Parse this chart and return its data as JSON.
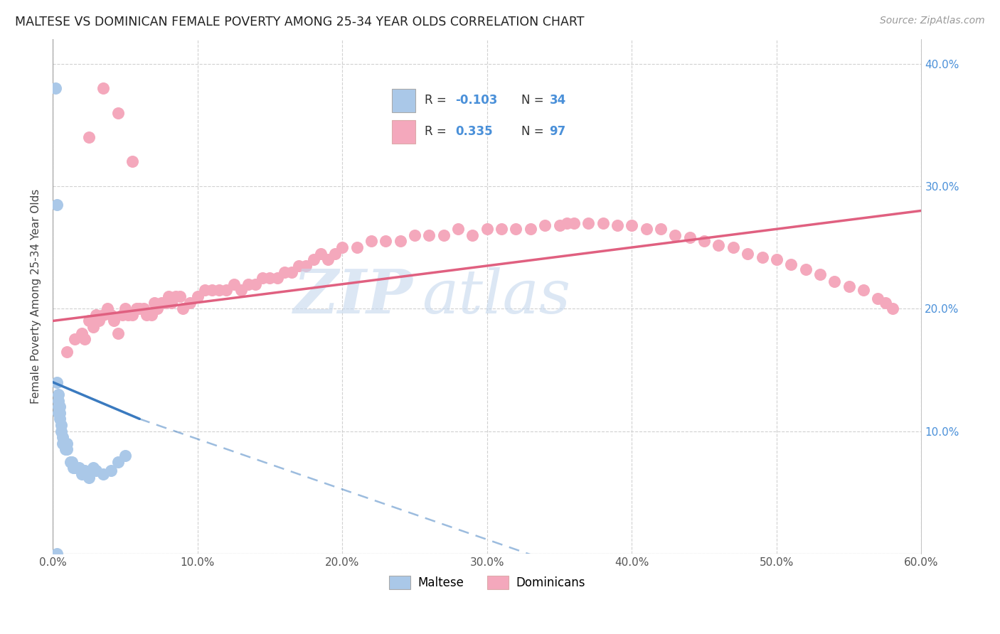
{
  "title": "MALTESE VS DOMINICAN FEMALE POVERTY AMONG 25-34 YEAR OLDS CORRELATION CHART",
  "source": "Source: ZipAtlas.com",
  "ylabel": "Female Poverty Among 25-34 Year Olds",
  "xlim": [
    0.0,
    0.6
  ],
  "ylim": [
    0.0,
    0.42
  ],
  "xticks": [
    0.0,
    0.1,
    0.2,
    0.3,
    0.4,
    0.5,
    0.6
  ],
  "xticklabels": [
    "0.0%",
    "10.0%",
    "20.0%",
    "30.0%",
    "40.0%",
    "50.0%",
    "60.0%"
  ],
  "yticks_right": [
    0.1,
    0.2,
    0.3,
    0.4
  ],
  "yticklabels_right": [
    "10.0%",
    "20.0%",
    "30.0%",
    "40.0%"
  ],
  "maltese_color": "#aac8e8",
  "dominican_color": "#f4a8bc",
  "maltese_line_color": "#3a7abf",
  "dominican_line_color": "#e06080",
  "maltese_R": -0.103,
  "maltese_N": 34,
  "dominican_R": 0.335,
  "dominican_N": 97,
  "legend_labels": [
    "Maltese",
    "Dominicans"
  ],
  "watermark_zip": "ZIP",
  "watermark_atlas": "atlas",
  "maltese_x": [
    0.002,
    0.003,
    0.003,
    0.004,
    0.004,
    0.004,
    0.004,
    0.005,
    0.005,
    0.005,
    0.006,
    0.006,
    0.007,
    0.007,
    0.008,
    0.009,
    0.009,
    0.01,
    0.01,
    0.012,
    0.013,
    0.014,
    0.015,
    0.018,
    0.02,
    0.022,
    0.025,
    0.028,
    0.03,
    0.035,
    0.04,
    0.045,
    0.05,
    0.003
  ],
  "maltese_y": [
    0.38,
    0.285,
    0.14,
    0.13,
    0.125,
    0.12,
    0.115,
    0.12,
    0.115,
    0.11,
    0.105,
    0.1,
    0.095,
    0.09,
    0.09,
    0.09,
    0.085,
    0.09,
    0.085,
    0.075,
    0.075,
    0.07,
    0.07,
    0.07,
    0.065,
    0.068,
    0.062,
    0.07,
    0.068,
    0.065,
    0.068,
    0.075,
    0.08,
    0.0
  ],
  "dominican_x": [
    0.01,
    0.015,
    0.02,
    0.022,
    0.025,
    0.028,
    0.03,
    0.032,
    0.035,
    0.038,
    0.04,
    0.042,
    0.045,
    0.048,
    0.05,
    0.052,
    0.055,
    0.058,
    0.06,
    0.063,
    0.065,
    0.068,
    0.07,
    0.072,
    0.075,
    0.078,
    0.08,
    0.082,
    0.085,
    0.088,
    0.09,
    0.095,
    0.1,
    0.105,
    0.11,
    0.115,
    0.12,
    0.125,
    0.13,
    0.135,
    0.14,
    0.145,
    0.15,
    0.155,
    0.16,
    0.165,
    0.17,
    0.175,
    0.18,
    0.185,
    0.19,
    0.195,
    0.2,
    0.21,
    0.22,
    0.23,
    0.24,
    0.25,
    0.26,
    0.27,
    0.28,
    0.29,
    0.3,
    0.31,
    0.32,
    0.33,
    0.34,
    0.35,
    0.355,
    0.36,
    0.37,
    0.38,
    0.39,
    0.4,
    0.41,
    0.42,
    0.43,
    0.44,
    0.45,
    0.46,
    0.47,
    0.48,
    0.49,
    0.5,
    0.51,
    0.52,
    0.53,
    0.54,
    0.55,
    0.56,
    0.57,
    0.575,
    0.58,
    0.025,
    0.035,
    0.045,
    0.055
  ],
  "dominican_y": [
    0.165,
    0.175,
    0.18,
    0.175,
    0.19,
    0.185,
    0.195,
    0.19,
    0.195,
    0.2,
    0.195,
    0.19,
    0.18,
    0.195,
    0.2,
    0.195,
    0.195,
    0.2,
    0.2,
    0.2,
    0.195,
    0.195,
    0.205,
    0.2,
    0.205,
    0.205,
    0.21,
    0.205,
    0.21,
    0.21,
    0.2,
    0.205,
    0.21,
    0.215,
    0.215,
    0.215,
    0.215,
    0.22,
    0.215,
    0.22,
    0.22,
    0.225,
    0.225,
    0.225,
    0.23,
    0.23,
    0.235,
    0.235,
    0.24,
    0.245,
    0.24,
    0.245,
    0.25,
    0.25,
    0.255,
    0.255,
    0.255,
    0.26,
    0.26,
    0.26,
    0.265,
    0.26,
    0.265,
    0.265,
    0.265,
    0.265,
    0.268,
    0.268,
    0.27,
    0.27,
    0.27,
    0.27,
    0.268,
    0.268,
    0.265,
    0.265,
    0.26,
    0.258,
    0.255,
    0.252,
    0.25,
    0.245,
    0.242,
    0.24,
    0.236,
    0.232,
    0.228,
    0.222,
    0.218,
    0.215,
    0.208,
    0.205,
    0.2,
    0.34,
    0.38,
    0.36,
    0.32
  ],
  "maltese_trend_x0": 0.0,
  "maltese_trend_x1": 0.06,
  "maltese_trend_xdash1": 0.06,
  "maltese_trend_xdash2": 0.45,
  "maltese_trend_y0": 0.14,
  "maltese_trend_y1": 0.11,
  "maltese_trend_ydash1": 0.11,
  "maltese_trend_ydash2": -0.05,
  "dominican_trend_x0": 0.0,
  "dominican_trend_x1": 0.6,
  "dominican_trend_y0": 0.19,
  "dominican_trend_y1": 0.28
}
